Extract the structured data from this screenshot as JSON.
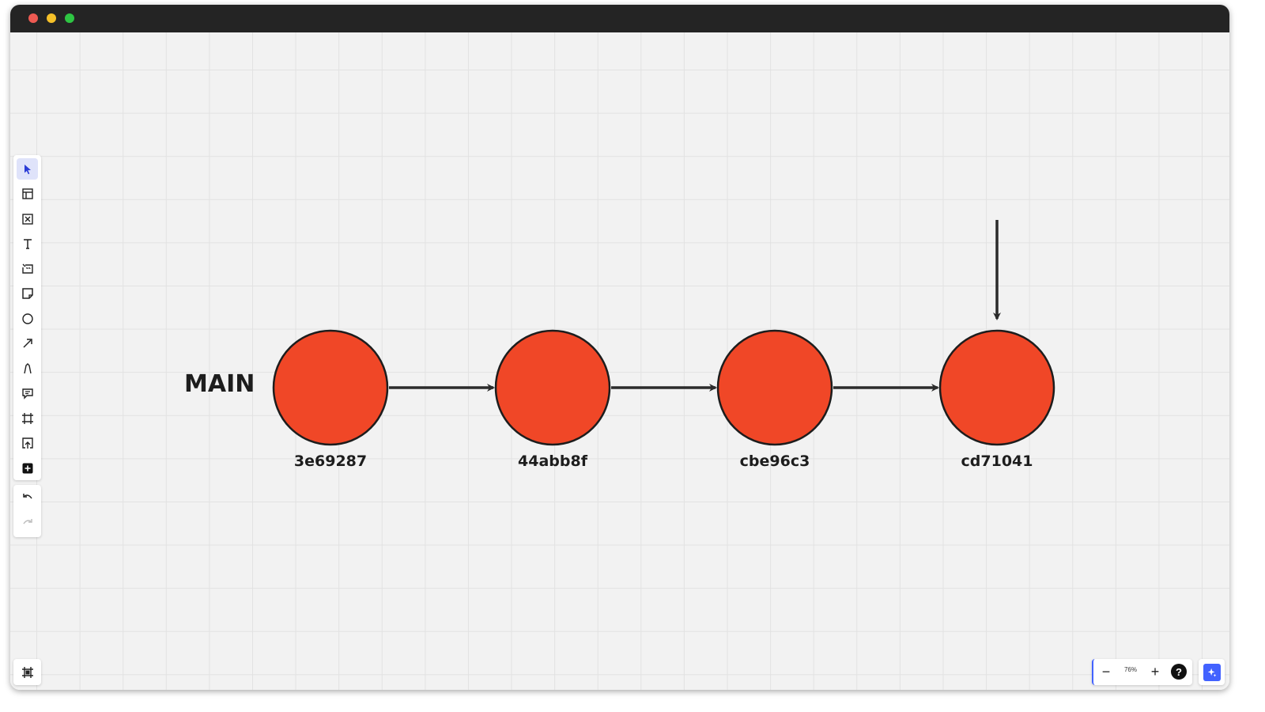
{
  "window": {
    "buttons": [
      "close",
      "minimize",
      "maximize"
    ]
  },
  "toolbar": {
    "tools": [
      {
        "name": "select",
        "icon": "cursor-icon",
        "active": true
      },
      {
        "name": "templates",
        "icon": "layout-icon"
      },
      {
        "name": "frame-placeholder",
        "icon": "crossed-box-icon"
      },
      {
        "name": "text",
        "icon": "text-icon"
      },
      {
        "name": "card",
        "icon": "card-icon"
      },
      {
        "name": "sticky-note",
        "icon": "sticky-note-icon"
      },
      {
        "name": "shapes",
        "icon": "circle-icon"
      },
      {
        "name": "connection-line",
        "icon": "arrow-line-icon"
      },
      {
        "name": "pen",
        "icon": "pen-icon"
      },
      {
        "name": "comment",
        "icon": "comment-icon"
      },
      {
        "name": "frame",
        "icon": "frame-icon"
      },
      {
        "name": "upload",
        "icon": "upload-icon"
      },
      {
        "name": "more-apps",
        "icon": "plus-square-icon"
      }
    ],
    "history": [
      {
        "name": "undo",
        "icon": "undo-icon",
        "enabled": true
      },
      {
        "name": "redo",
        "icon": "redo-icon",
        "enabled": false
      }
    ]
  },
  "diagram": {
    "branch": "MAIN",
    "commits": [
      "3e69287",
      "44abb8f",
      "cbe96c3",
      "cd71041"
    ],
    "node_color": "#f04727",
    "stroke_color": "#1d1d1d"
  },
  "zoom": {
    "minus": "−",
    "value": "76%",
    "plus": "+",
    "help": "?"
  },
  "colors": {
    "accent": "#4262ff",
    "canvas": "#f2f2f2",
    "titlebar": "#242424"
  }
}
